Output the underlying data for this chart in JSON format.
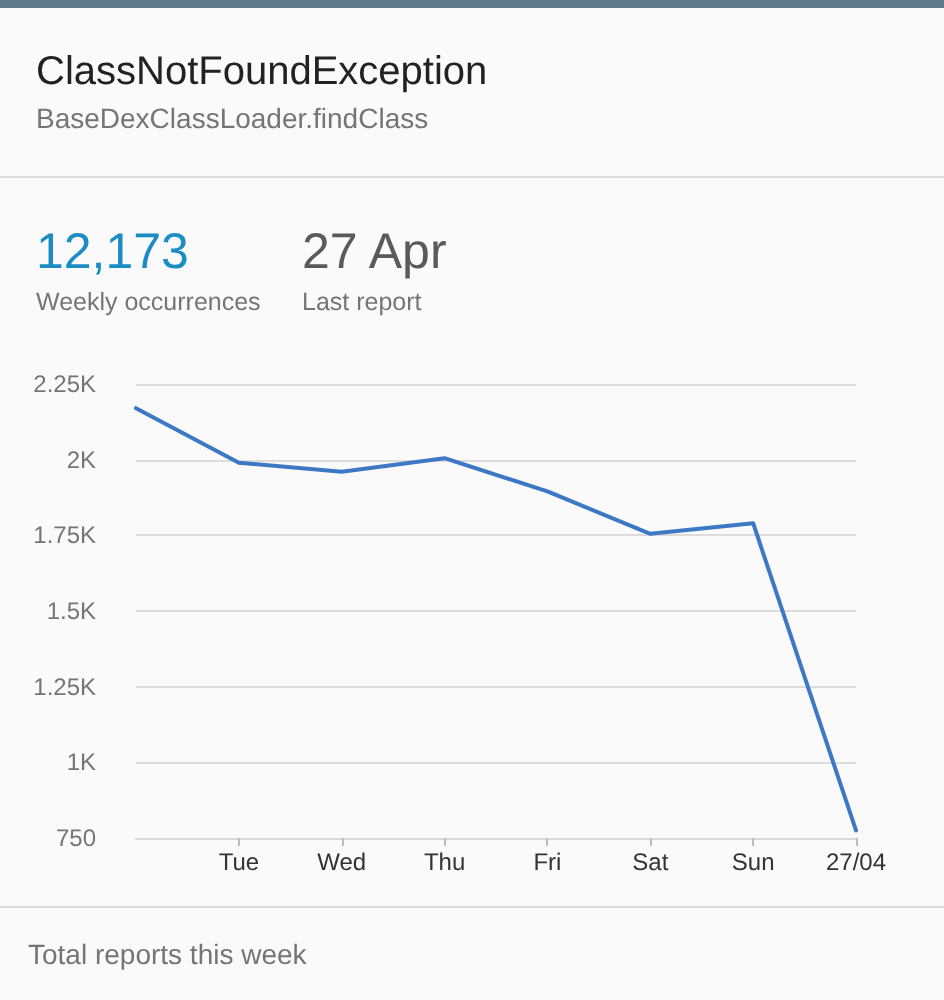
{
  "chart_data": {
    "type": "line",
    "title": "ClassNotFoundException",
    "subtitle": "BaseDexClassLoader.findClass",
    "annotations": [
      "12,173",
      "Weekly occurrences",
      "27 Apr",
      "Last report",
      "Total reports this week"
    ],
    "categories": [
      null,
      "Tue",
      "Wed",
      "Thu",
      "Fri",
      "Sat",
      "Sun",
      "27/04"
    ],
    "series": [
      {
        "color": "#3d78c4",
        "values": [
          2170,
          1990,
          1960,
          2005,
          1895,
          1755,
          1790,
          775
        ]
      }
    ],
    "ylim": [
      750,
      2250
    ],
    "yticks": [
      750,
      {
        "value": 1000,
        "label": "1K"
      },
      {
        "value": 1250,
        "label": "1.25K"
      },
      {
        "value": 1500,
        "label": "1.5K"
      },
      {
        "value": 1750,
        "label": "1.75K"
      },
      {
        "value": 2000,
        "label": "2K"
      },
      {
        "value": 2250,
        "label": "2.25K"
      }
    ],
    "grid": "y",
    "marker": "none",
    "line_style": "solid"
  }
}
